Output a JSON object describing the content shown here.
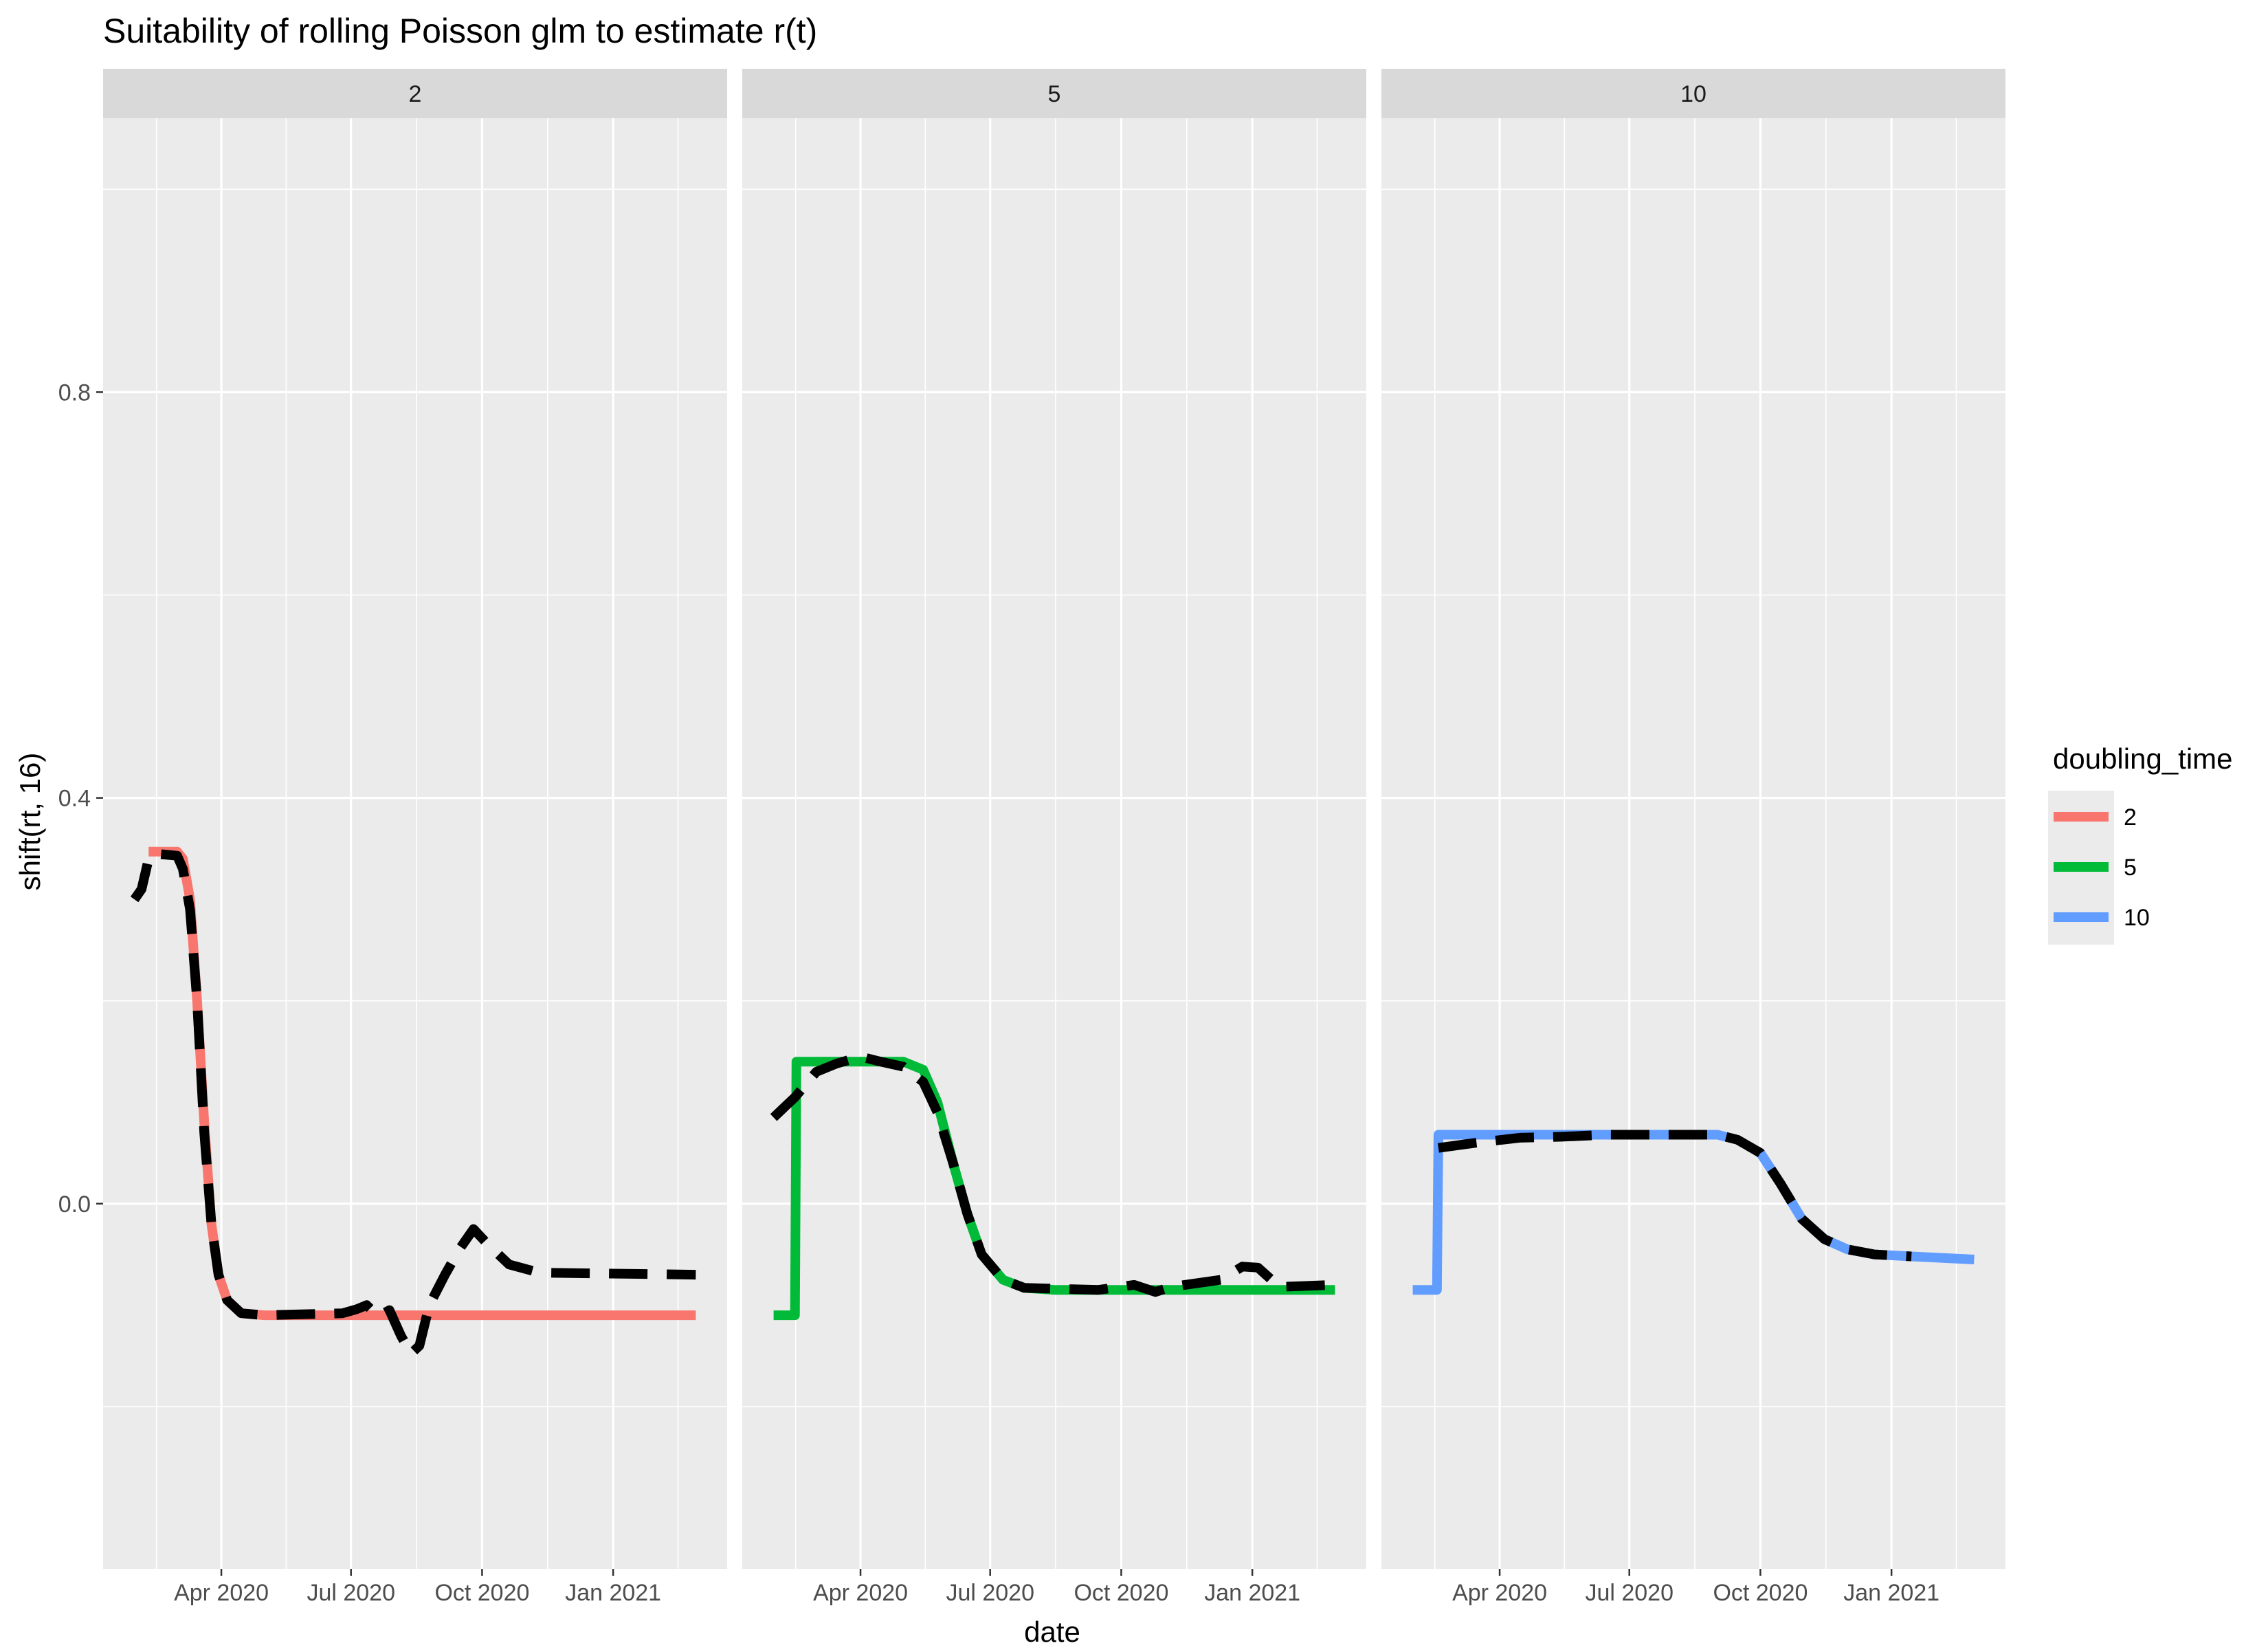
{
  "chart_data": {
    "type": "line",
    "title": "Suitability of rolling Poisson glm to estimate r(t)",
    "xlabel": "date",
    "ylabel": "shift(rt, 16)",
    "xlim": [
      "2020-01-09",
      "2021-03-22"
    ],
    "ylim": [
      -0.36,
      1.07
    ],
    "y_ticks": [
      0.0,
      0.4,
      0.8
    ],
    "y_tick_labels": [
      "0.0",
      "0.4",
      "0.8"
    ],
    "x_ticks": [
      "2020-04-01",
      "2020-07-01",
      "2020-10-01",
      "2021-01-01"
    ],
    "x_tick_labels": [
      "Apr 2020",
      "Jul 2020",
      "Oct 2020",
      "Jan 2021"
    ],
    "grid": true,
    "facet_variable": "doubling_time",
    "legend": {
      "title": "doubling_time",
      "position": "right",
      "entries": [
        {
          "label": "2",
          "color": "#F8766D"
        },
        {
          "label": "5",
          "color": "#00BA38"
        },
        {
          "label": "10",
          "color": "#619CFF"
        }
      ]
    },
    "facets": [
      {
        "label": "2",
        "color": "#F8766D",
        "series": [
          {
            "style": "solid",
            "points": [
              [
                "2020-02-10",
                0.347
              ],
              [
                "2020-03-01",
                0.347
              ],
              [
                "2020-03-05",
                0.34
              ],
              [
                "2020-03-10",
                0.3
              ],
              [
                "2020-03-15",
                0.2
              ],
              [
                "2020-03-20",
                0.08
              ],
              [
                "2020-03-25",
                -0.02
              ],
              [
                "2020-03-30",
                -0.07
              ],
              [
                "2020-04-05",
                -0.095
              ],
              [
                "2020-04-15",
                -0.108
              ],
              [
                "2020-05-01",
                -0.11
              ],
              [
                "2021-02-28",
                -0.11
              ]
            ]
          },
          {
            "style": "dashed",
            "points": [
              [
                "2020-01-31",
                0.3
              ],
              [
                "2020-02-05",
                0.31
              ],
              [
                "2020-02-10",
                0.34
              ],
              [
                "2020-02-15",
                0.345
              ],
              [
                "2020-03-01",
                0.343
              ],
              [
                "2020-03-05",
                0.33
              ],
              [
                "2020-03-10",
                0.29
              ],
              [
                "2020-03-15",
                0.2
              ],
              [
                "2020-03-20",
                0.07
              ],
              [
                "2020-03-25",
                -0.02
              ],
              [
                "2020-03-30",
                -0.07
              ],
              [
                "2020-04-05",
                -0.095
              ],
              [
                "2020-04-15",
                -0.108
              ],
              [
                "2020-05-01",
                -0.11
              ],
              [
                "2020-06-25",
                -0.108
              ],
              [
                "2020-07-05",
                -0.104
              ],
              [
                "2020-07-12",
                -0.1
              ],
              [
                "2020-07-20",
                -0.111
              ],
              [
                "2020-07-28",
                -0.105
              ],
              [
                "2020-08-05",
                -0.13
              ],
              [
                "2020-08-12",
                -0.148
              ],
              [
                "2020-08-18",
                -0.14
              ],
              [
                "2020-08-25",
                -0.1
              ],
              [
                "2020-09-05",
                -0.07
              ],
              [
                "2020-09-15",
                -0.045
              ],
              [
                "2020-09-25",
                -0.025
              ],
              [
                "2020-10-05",
                -0.04
              ],
              [
                "2020-10-20",
                -0.06
              ],
              [
                "2020-11-10",
                -0.068
              ],
              [
                "2021-02-28",
                -0.07
              ]
            ]
          }
        ]
      },
      {
        "label": "5",
        "color": "#00BA38",
        "series": [
          {
            "style": "solid",
            "points": [
              [
                "2020-01-31",
                -0.11
              ],
              [
                "2020-02-15",
                -0.11
              ],
              [
                "2020-02-16",
                0.14
              ],
              [
                "2020-05-01",
                0.14
              ],
              [
                "2020-05-15",
                0.132
              ],
              [
                "2020-05-25",
                0.1
              ],
              [
                "2020-06-05",
                0.04
              ],
              [
                "2020-06-15",
                -0.01
              ],
              [
                "2020-06-25",
                -0.05
              ],
              [
                "2020-07-10",
                -0.075
              ],
              [
                "2020-07-25",
                -0.083
              ],
              [
                "2020-08-15",
                -0.085
              ],
              [
                "2021-02-28",
                -0.085
              ]
            ]
          },
          {
            "style": "dashed",
            "points": [
              [
                "2020-01-31",
                0.085
              ],
              [
                "2020-02-15",
                0.105
              ],
              [
                "2020-03-01",
                0.13
              ],
              [
                "2020-03-15",
                0.138
              ],
              [
                "2020-04-01",
                0.145
              ],
              [
                "2020-04-15",
                0.14
              ],
              [
                "2020-05-01",
                0.135
              ],
              [
                "2020-05-15",
                0.12
              ],
              [
                "2020-05-25",
                0.09
              ],
              [
                "2020-06-05",
                0.04
              ],
              [
                "2020-06-15",
                -0.01
              ],
              [
                "2020-06-25",
                -0.05
              ],
              [
                "2020-07-10",
                -0.075
              ],
              [
                "2020-07-25",
                -0.083
              ],
              [
                "2020-09-15",
                -0.085
              ],
              [
                "2020-10-10",
                -0.08
              ],
              [
                "2020-10-25",
                -0.087
              ],
              [
                "2020-11-05",
                -0.082
              ],
              [
                "2020-12-10",
                -0.075
              ],
              [
                "2020-12-25",
                -0.062
              ],
              [
                "2021-01-05",
                -0.063
              ],
              [
                "2021-01-20",
                -0.082
              ],
              [
                "2021-02-28",
                -0.08
              ]
            ]
          }
        ]
      },
      {
        "label": "10",
        "color": "#619CFF",
        "series": [
          {
            "style": "solid",
            "points": [
              [
                "2020-01-31",
                -0.085
              ],
              [
                "2020-02-17",
                -0.085
              ],
              [
                "2020-02-18",
                0.068
              ],
              [
                "2020-09-01",
                0.068
              ],
              [
                "2020-09-15",
                0.063
              ],
              [
                "2020-10-01",
                0.05
              ],
              [
                "2020-10-15",
                0.02
              ],
              [
                "2020-10-30",
                -0.015
              ],
              [
                "2020-11-15",
                -0.035
              ],
              [
                "2020-12-01",
                -0.045
              ],
              [
                "2020-12-20",
                -0.05
              ],
              [
                "2021-01-15",
                -0.052
              ],
              [
                "2021-02-28",
                -0.055
              ]
            ]
          },
          {
            "style": "dashed",
            "points": [
              [
                "2020-02-18",
                0.055
              ],
              [
                "2020-03-15",
                0.06
              ],
              [
                "2020-04-15",
                0.065
              ],
              [
                "2020-05-15",
                0.066
              ],
              [
                "2020-06-15",
                0.068
              ],
              [
                "2020-08-01",
                0.068
              ],
              [
                "2020-09-01",
                0.068
              ],
              [
                "2020-09-15",
                0.063
              ],
              [
                "2020-10-01",
                0.05
              ],
              [
                "2020-10-15",
                0.02
              ],
              [
                "2020-10-30",
                -0.015
              ],
              [
                "2020-11-15",
                -0.035
              ],
              [
                "2020-12-01",
                -0.045
              ],
              [
                "2020-12-20",
                -0.05
              ],
              [
                "2021-01-15",
                -0.052
              ]
            ]
          }
        ]
      }
    ]
  }
}
